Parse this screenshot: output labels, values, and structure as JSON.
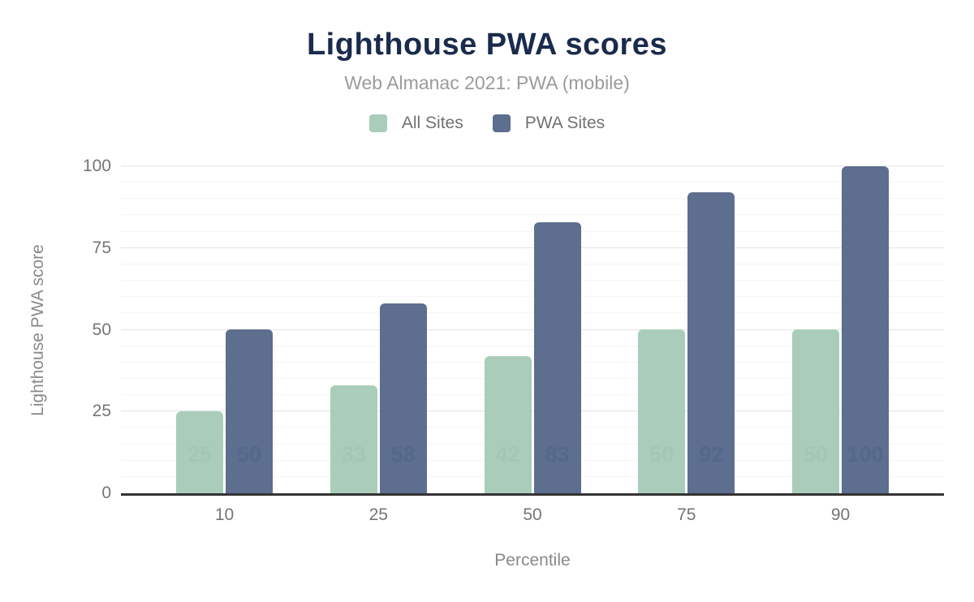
{
  "header": {
    "title": "Lighthouse PWA scores",
    "subtitle": "Web Almanac 2021: PWA (mobile)"
  },
  "chart_data": {
    "type": "bar",
    "title": "Lighthouse PWA scores",
    "subtitle": "Web Almanac 2021: PWA (mobile)",
    "categories": [
      "10",
      "25",
      "50",
      "75",
      "90"
    ],
    "series": [
      {
        "name": "All Sites",
        "color": "#a9cdba",
        "label_color": "#a2c7b2",
        "values": [
          25,
          33,
          42,
          50,
          50
        ]
      },
      {
        "name": "PWA Sites",
        "color": "#5d6e8e",
        "label_color": "#54688c",
        "values": [
          50,
          58,
          83,
          92,
          100
        ]
      }
    ],
    "xlabel": "Percentile",
    "ylabel": "Lighthouse PWA score",
    "ylim": [
      0,
      100
    ],
    "yticks": [
      0,
      25,
      50,
      75,
      100
    ],
    "minor_grid_step": 5,
    "grid": true,
    "legend_position": "top",
    "data_labels": true,
    "label_offset_units": 10
  },
  "colors": {
    "title": "#1a2b4d",
    "subtitle": "#9b9b9b",
    "axis_text": "#757575",
    "axis_line": "#333333",
    "major_grid": "#e3e3e3",
    "minor_grid": "#f5f5f5",
    "background": "#ffffff"
  }
}
